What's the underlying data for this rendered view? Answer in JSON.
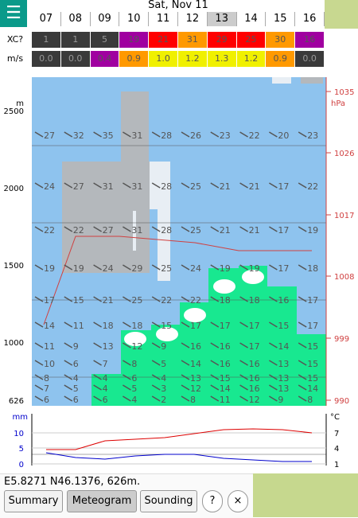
{
  "header": {
    "date": "Sat, Nov 11",
    "hours": [
      "07",
      "08",
      "09",
      "10",
      "11",
      "12",
      "13",
      "14",
      "15",
      "16"
    ],
    "selected_hour": "13"
  },
  "xc": {
    "label": "XC?",
    "values": [
      "1",
      "1",
      "5",
      "19",
      "21",
      "31",
      "29",
      "25",
      "30",
      "16"
    ],
    "colors": [
      "#3a3a3a",
      "#3a3a3a",
      "#3a3a3a",
      "#a000a0",
      "#ff0000",
      "#ff9900",
      "#ff0000",
      "#ff0000",
      "#ff9900",
      "#a000a0"
    ]
  },
  "climb": {
    "label": "m/s",
    "values": [
      "0.0",
      "0.0",
      "0.4",
      "0.9",
      "1.0",
      "1.2",
      "1.3",
      "1.2",
      "0.9",
      "0.0"
    ],
    "colors": [
      "#3a3a3a",
      "#3a3a3a",
      "#a000a0",
      "#ff9900",
      "#f0f000",
      "#f0f000",
      "#f0f000",
      "#f0f000",
      "#ff9900",
      "#3a3a3a"
    ]
  },
  "altitude_axis": {
    "unit": "m",
    "ticks": [
      "2500",
      "2000",
      "1500",
      "1000",
      "626"
    ]
  },
  "pressure_axis": {
    "unit": "hPa",
    "ticks": [
      "1035",
      "1026",
      "1017",
      "1008",
      "999",
      "990"
    ]
  },
  "wind_rows": [
    [
      27,
      32,
      35,
      31,
      28,
      26,
      23,
      22,
      20,
      23
    ],
    [
      24,
      27,
      31,
      31,
      28,
      25,
      21,
      21,
      17,
      22
    ],
    [
      22,
      22,
      27,
      31,
      28,
      25,
      21,
      21,
      17,
      19
    ],
    [
      19,
      19,
      24,
      29,
      25,
      24,
      19,
      19,
      17,
      18
    ],
    [
      17,
      15,
      21,
      25,
      22,
      22,
      18,
      18,
      16,
      17
    ],
    [
      14,
      11,
      18,
      18,
      15,
      17,
      17,
      17,
      15,
      17
    ],
    [
      11,
      9,
      13,
      12,
      9,
      16,
      16,
      17,
      14,
      15
    ],
    [
      10,
      6,
      7,
      8,
      5,
      14,
      16,
      16,
      13,
      15
    ],
    [
      8,
      4,
      4,
      6,
      4,
      13,
      15,
      16,
      13,
      15
    ],
    [
      7,
      5,
      4,
      5,
      3,
      12,
      14,
      16,
      13,
      14
    ],
    [
      6,
      6,
      6,
      4,
      2,
      8,
      11,
      12,
      9,
      8
    ]
  ],
  "precip_axis": {
    "unit": "mm",
    "ticks": [
      "10",
      "5",
      "0"
    ]
  },
  "temp_axis": {
    "unit": "°C",
    "ticks": [
      "7",
      "4",
      "1"
    ]
  },
  "location": "E5.8271 N46.1376, 626m.",
  "buttons": [
    "Summary",
    "Meteogram",
    "Sounding",
    "?",
    "×"
  ]
}
